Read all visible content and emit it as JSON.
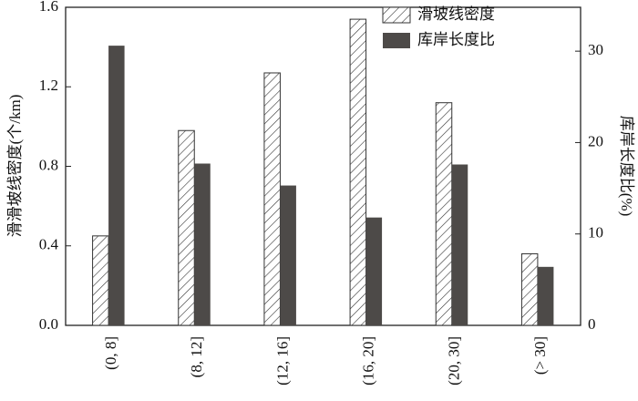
{
  "chart_data": {
    "type": "bar",
    "categories": [
      "(0, 8]",
      "(8, 12]",
      "(12, 16]",
      "(16, 20]",
      "(20, 30]",
      "(> 30]"
    ],
    "series": [
      {
        "name": "滑坡线密度",
        "color": "#333333",
        "hatch": true,
        "values": [
          0.45,
          0.98,
          1.27,
          1.54,
          1.12,
          0.36
        ]
      },
      {
        "name": "库岸长度比",
        "color": "#4d4a48",
        "axis": "y2",
        "values": [
          30.6,
          17.7,
          15.3,
          11.8,
          17.6,
          6.4
        ]
      }
    ],
    "y_label": "滑滑坡线密度(个/km)",
    "y2_label": "库岸长度比(%)",
    "ylim": [
      0,
      1.6
    ],
    "yticks": [
      {
        "value": 0,
        "label": "0.0"
      },
      0.4,
      0.8,
      1.2,
      1.6
    ],
    "y2lim": [
      0,
      34.8
    ],
    "y2ticks": [
      0,
      10,
      20,
      30
    ],
    "legend": "top-right"
  }
}
